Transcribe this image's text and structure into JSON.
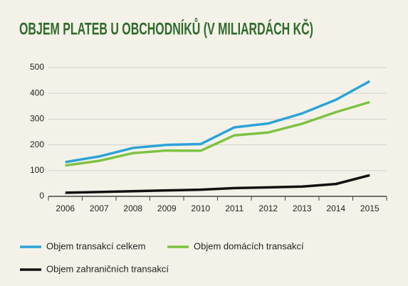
{
  "chart_data": {
    "type": "line",
    "title": "OBJEM PLATEB U OBCHODNÍKŮ (V MILIARDÁCH KČ)",
    "categories": [
      "2006",
      "2007",
      "2008",
      "2009",
      "2010",
      "2011",
      "2012",
      "2013",
      "2014",
      "2015"
    ],
    "series": [
      {
        "name": "Objem transakcí celkem",
        "color": "#2ba3d9",
        "values": [
          133,
          155,
          188,
          200,
          203,
          268,
          283,
          322,
          375,
          447
        ]
      },
      {
        "name": "Objem domácích transakcí",
        "color": "#7dc242",
        "values": [
          120,
          138,
          168,
          178,
          177,
          237,
          248,
          282,
          327,
          366
        ]
      },
      {
        "name": "Objem zahraničních transakcí",
        "color": "#111111",
        "values": [
          14,
          17,
          20,
          23,
          26,
          32,
          35,
          38,
          48,
          82
        ]
      }
    ],
    "ylim": [
      0,
      500
    ],
    "yticks": [
      0,
      100,
      200,
      300,
      400,
      500
    ],
    "grid": true
  }
}
